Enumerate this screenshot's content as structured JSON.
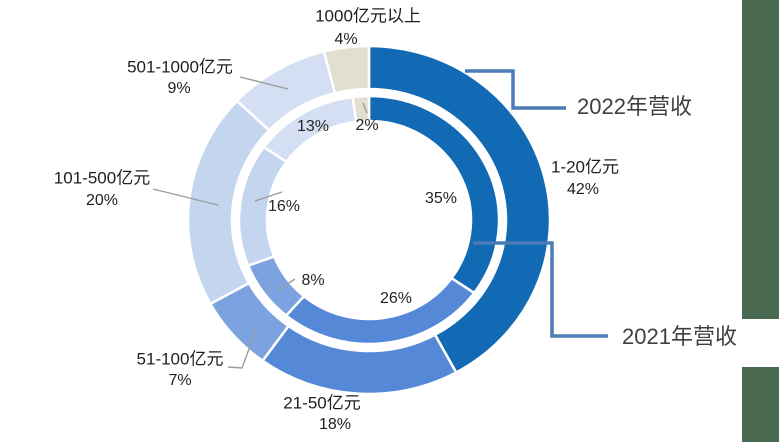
{
  "chart_data": {
    "type": "pie",
    "subtype": "double_ring_donut",
    "title": "",
    "unit": "%",
    "start_angle_deg": 0,
    "direction": "clockwise",
    "legend_position": "callout-labels-right",
    "categories": [
      "1-20亿元",
      "21-50亿元",
      "51-100亿元",
      "101-500亿元",
      "501-1000亿元",
      "1000亿元以上"
    ],
    "series": [
      {
        "name": "2022年营收",
        "ring": "outer",
        "values": [
          42,
          18,
          7,
          20,
          9,
          4
        ]
      },
      {
        "name": "2021年营收",
        "ring": "inner",
        "values": [
          35,
          26,
          8,
          16,
          13,
          2
        ]
      }
    ],
    "colors": {
      "slices": [
        "#1269B4",
        "#5589D8",
        "#7CA2DF",
        "#C4D5EF",
        "#D5DFF3",
        "#E2DFD0"
      ],
      "slice_border": "#FFFFFF",
      "callout_line": "#4B7CB8",
      "leader_line": "#9C9C9C",
      "category_text": "#1F1F1F",
      "series_label_text": "#404040",
      "accent_bar": "#4A6B51",
      "background": "#FFFFFF"
    }
  }
}
